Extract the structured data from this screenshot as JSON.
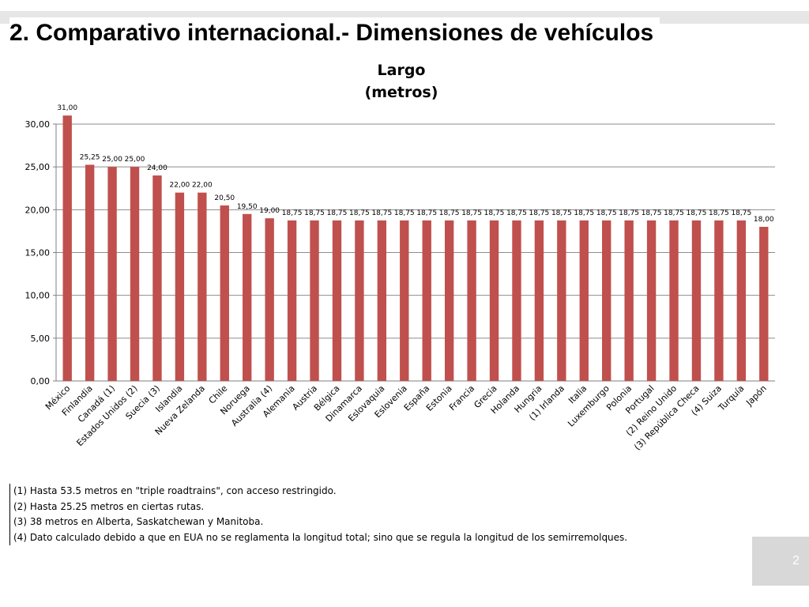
{
  "slide": {
    "title": "2.  Comparativo internacional.- Dimensiones de vehículos",
    "page_number": "2"
  },
  "chart_data": {
    "type": "bar",
    "title": "Largo",
    "subtitle": "(metros)",
    "xlabel": "",
    "ylabel": "",
    "ylim": [
      0,
      30
    ],
    "yticks": [
      "0,00",
      "5,00",
      "10,00",
      "15,00",
      "20,00",
      "25,00",
      "30,00"
    ],
    "grid": true,
    "bar_color": "#c0504d",
    "categories": [
      "México",
      "Finlandia",
      "Canadá (1)",
      "Estados Unidos (2)",
      "Suecia (3)",
      "Islandia",
      "Nueva Zelanda",
      "Chile",
      "Noruega",
      "Australia (4)",
      "Alemania",
      "Austria",
      "Bélgica",
      "Dinamarca",
      "Eslovaquia",
      "Eslovenia",
      "España",
      "Estonia",
      "Francia",
      "Grecia",
      "Holanda",
      "Hungria",
      "(1) Irlanda",
      "Italia",
      "Luxemburgo",
      "Polonia",
      "Portugal",
      "(2) Reino Unido",
      "(3) República Checa",
      "(4) Suiza",
      "Turquía",
      "Japón"
    ],
    "values": [
      31.0,
      25.25,
      25.0,
      25.0,
      24.0,
      22.0,
      22.0,
      20.5,
      19.5,
      19.0,
      18.75,
      18.75,
      18.75,
      18.75,
      18.75,
      18.75,
      18.75,
      18.75,
      18.75,
      18.75,
      18.75,
      18.75,
      18.75,
      18.75,
      18.75,
      18.75,
      18.75,
      18.75,
      18.75,
      18.75,
      18.75,
      18.0
    ],
    "data_labels": [
      "31,00",
      "25,25",
      "25,00",
      "25,00",
      "24,00",
      "22,00",
      "22,00",
      "20,50",
      "19,50",
      "19,00",
      "18,75",
      "18,75",
      "18,75",
      "18,75",
      "18,75",
      "18,75",
      "18,75",
      "18,75",
      "18,75",
      "18,75",
      "18,75",
      "18,75",
      "18,75",
      "18,75",
      "18,75",
      "18,75",
      "18,75",
      "18,75",
      "18,75",
      "18,75",
      "18,75",
      "18,00"
    ]
  },
  "footnotes": [
    "(1) Hasta 53.5 metros en \"triple roadtrains\", con acceso restringido.",
    "(2) Hasta 25.25 metros en ciertas rutas.",
    "(3) 38 metros en Alberta, Saskatchewan y Manitoba.",
    "(4) Dato calculado debido a que en EUA no se reglamenta la longitud total; sino que se regula la longitud de los semirremolques."
  ]
}
